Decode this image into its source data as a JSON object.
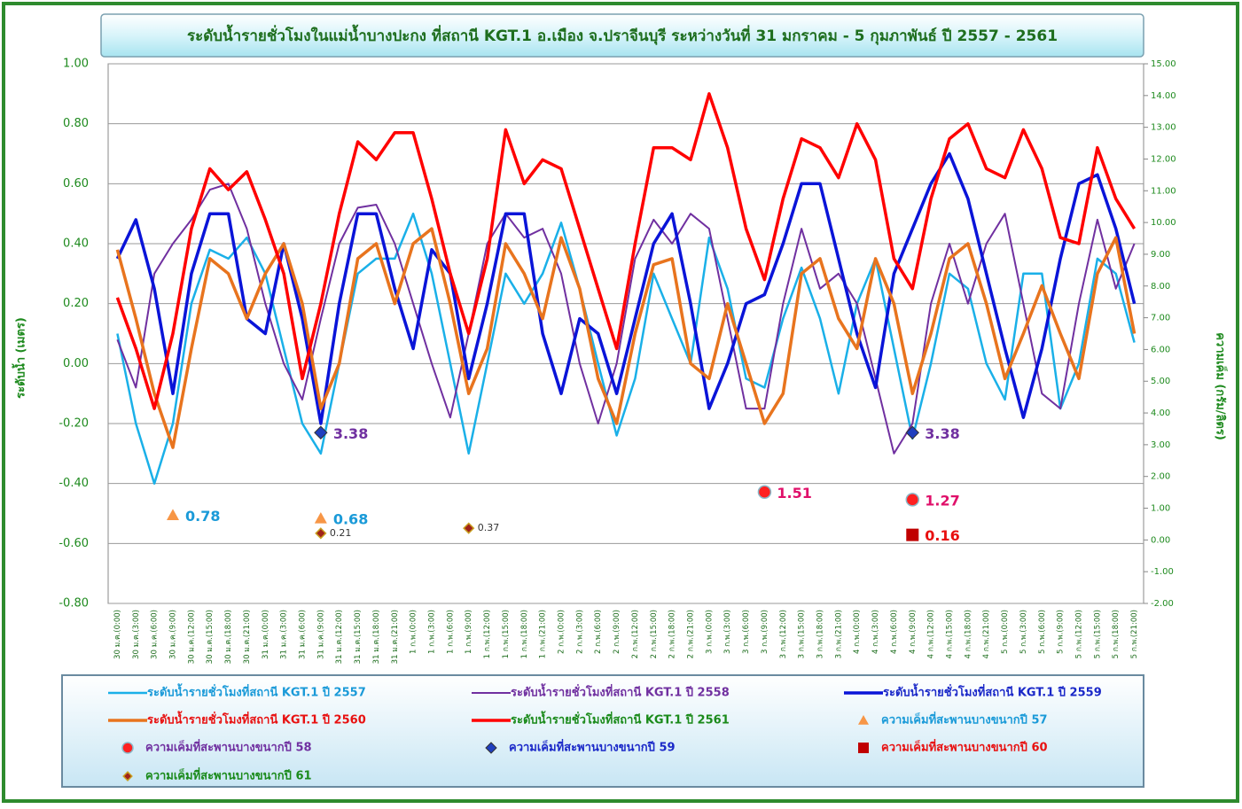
{
  "chart_data": {
    "type": "line",
    "title": "ระดับน้ำรายชั่วโมงในแม่น้ำบางปะกง ที่สถานี KGT.1 อ.เมือง จ.ปราจีนบุรี ระหว่างวันที่ 31 มกราคม - 5 กุมภาพันธ์ ปี 2557 - 2561",
    "y_label": "ระดับน้ำ (เมตร)",
    "y2_label": "ความเค็ม (กรัม/ลิตร)",
    "grid": true,
    "categories": [
      "30 ม.ค.(0:00)",
      "30 ม.ค.(3:00)",
      "30 ม.ค.(6:00)",
      "30 ม.ค.(9:00)",
      "30 ม.ค.(12:00)",
      "30 ม.ค.(15:00)",
      "30 ม.ค.(18:00)",
      "30 ม.ค.(21:00)",
      "31 ม.ค.(0:00)",
      "31 ม.ค.(3:00)",
      "31 ม.ค.(6:00)",
      "31 ม.ค.(9:00)",
      "31 ม.ค.(12:00)",
      "31 ม.ค.(15:00)",
      "31 ม.ค.(18:00)",
      "31 ม.ค.(21:00)",
      "1 ก.พ.(0:00)",
      "1 ก.พ.(3:00)",
      "1 ก.พ.(6:00)",
      "1 ก.พ.(9:00)",
      "1 ก.พ.(12:00)",
      "1 ก.พ.(15:00)",
      "1 ก.พ.(18:00)",
      "1 ก.พ.(21:00)",
      "2 ก.พ.(0:00)",
      "2 ก.พ.(3:00)",
      "2 ก.พ.(6:00)",
      "2 ก.พ.(9:00)",
      "2 ก.พ.(12:00)",
      "2 ก.พ.(15:00)",
      "2 ก.พ.(18:00)",
      "2 ก.พ.(21:00)",
      "3 ก.พ.(0:00)",
      "3 ก.พ.(3:00)",
      "3 ก.พ.(6:00)",
      "3 ก.พ.(9:00)",
      "3 ก.พ.(12:00)",
      "3 ก.พ.(15:00)",
      "3 ก.พ.(18:00)",
      "3 ก.พ.(21:00)",
      "4 ก.พ.(0:00)",
      "4 ก.พ.(3:00)",
      "4 ก.พ.(6:00)",
      "4 ก.พ.(9:00)",
      "4 ก.พ.(12:00)",
      "4 ก.พ.(15:00)",
      "4 ก.พ.(18:00)",
      "4 ก.พ.(21:00)",
      "5 ก.พ.(0:00)",
      "5 ก.พ.(3:00)",
      "5 ก.พ.(6:00)",
      "5 ก.พ.(9:00)",
      "5 ก.พ.(12:00)",
      "5 ก.พ.(15:00)",
      "5 ก.พ.(18:00)",
      "5 ก.พ.(21:00)"
    ],
    "ylim": [
      -0.8,
      1.0
    ],
    "yticks": [
      {
        "value": 1.0,
        "label": "1.00"
      },
      {
        "value": 0.8,
        "label": "0.80"
      },
      {
        "value": 0.6,
        "label": "0.60"
      },
      {
        "value": 0.4,
        "label": "0.40"
      },
      {
        "value": 0.2,
        "label": "0.20"
      },
      {
        "value": 0,
        "label": "0.00"
      },
      {
        "value": -0.2,
        "label": "-0.20"
      },
      {
        "value": -0.4,
        "label": "-0.40"
      },
      {
        "value": -0.6,
        "label": "-0.60"
      },
      {
        "value": -0.8,
        "label": "-0.80"
      }
    ],
    "y2lim": [
      -2,
      15
    ],
    "y2ticks": [
      {
        "value": 15,
        "label": "15.00"
      },
      {
        "value": 14,
        "label": "14.00"
      },
      {
        "value": 13,
        "label": "13.00"
      },
      {
        "value": 12,
        "label": "12.00"
      },
      {
        "value": 11,
        "label": "11.00"
      },
      {
        "value": 10,
        "label": "10.00"
      },
      {
        "value": 9,
        "label": "9.00"
      },
      {
        "value": 8,
        "label": "8.00"
      },
      {
        "value": 7,
        "label": "7.00"
      },
      {
        "value": 6,
        "label": "6.00"
      },
      {
        "value": 5,
        "label": "5.00"
      },
      {
        "value": 4,
        "label": "4.00"
      },
      {
        "value": 3,
        "label": "3.00"
      },
      {
        "value": 2,
        "label": "2.00"
      },
      {
        "value": 1,
        "label": "1.00"
      },
      {
        "value": 0,
        "label": "0.00"
      },
      {
        "value": -1,
        "label": "-1.00"
      },
      {
        "value": -2,
        "label": "-2.00"
      }
    ],
    "series": [
      {
        "name": "ระดับน้ำรายชั่วโมงที่สถานี KGT.1  ปี 2557",
        "color": "#1ab0e8",
        "text_color": "#1a9ad8",
        "width": 2.5,
        "values": [
          0.1,
          -0.2,
          -0.4,
          -0.2,
          0.2,
          0.38,
          0.35,
          0.42,
          0.3,
          0.05,
          -0.2,
          -0.3,
          0.0,
          0.3,
          0.35,
          0.35,
          0.5,
          0.3,
          0.0,
          -0.3,
          0.0,
          0.3,
          0.2,
          0.3,
          0.47,
          0.25,
          0.0,
          -0.24,
          -0.05,
          0.3,
          0.15,
          0.0,
          0.42,
          0.25,
          -0.05,
          -0.08,
          0.15,
          0.32,
          0.15,
          -0.1,
          0.2,
          0.35,
          0.05,
          -0.25,
          0.0,
          0.3,
          0.25,
          0.0,
          -0.12,
          0.3,
          0.3,
          -0.15,
          0.0,
          0.35,
          0.3,
          0.07
        ]
      },
      {
        "name": "ระดับน้ำรายชั่วโมงที่สถานี KGT.1  ปี 2558",
        "color": "#7030a0",
        "text_color": "#7030a0",
        "width": 2,
        "values": [
          0.08,
          -0.08,
          0.3,
          0.4,
          0.48,
          0.58,
          0.6,
          0.45,
          0.2,
          0.0,
          -0.12,
          0.15,
          0.4,
          0.52,
          0.53,
          0.4,
          0.2,
          0.0,
          -0.18,
          0.1,
          0.4,
          0.5,
          0.42,
          0.45,
          0.3,
          0.0,
          -0.2,
          0.0,
          0.35,
          0.48,
          0.4,
          0.5,
          0.45,
          0.15,
          -0.15,
          -0.15,
          0.2,
          0.45,
          0.25,
          0.3,
          0.2,
          -0.05,
          -0.3,
          -0.2,
          0.2,
          0.4,
          0.2,
          0.4,
          0.5,
          0.2,
          -0.1,
          -0.15,
          0.2,
          0.48,
          0.25,
          0.4
        ]
      },
      {
        "name": "ระดับน้ำรายชั่วโมงที่สถานี KGT.1 ปี 2559",
        "color": "#0a14d8",
        "text_color": "#1a28c8",
        "width": 3.5,
        "values": [
          0.35,
          0.48,
          0.25,
          -0.1,
          0.3,
          0.5,
          0.5,
          0.15,
          0.1,
          0.4,
          0.15,
          -0.2,
          0.2,
          0.5,
          0.5,
          0.25,
          0.05,
          0.38,
          0.3,
          -0.05,
          0.2,
          0.5,
          0.5,
          0.1,
          -0.1,
          0.15,
          0.1,
          -0.1,
          0.15,
          0.4,
          0.5,
          0.2,
          -0.15,
          0.0,
          0.2,
          0.23,
          0.4,
          0.6,
          0.6,
          0.35,
          0.1,
          -0.08,
          0.3,
          0.45,
          0.6,
          0.7,
          0.55,
          0.3,
          0.05,
          -0.18,
          0.05,
          0.35,
          0.6,
          0.63,
          0.45,
          0.2
        ]
      },
      {
        "name": "ระดับน้ำรายชั่วโมงที่สถานี KGT.1 ปี 2560",
        "color": "#e8741e",
        "text_color": "#e81010",
        "width": 3.5,
        "values": [
          0.38,
          0.15,
          -0.1,
          -0.28,
          0.05,
          0.35,
          0.3,
          0.15,
          0.3,
          0.4,
          0.2,
          -0.15,
          0.0,
          0.35,
          0.4,
          0.2,
          0.4,
          0.45,
          0.2,
          -0.1,
          0.05,
          0.4,
          0.3,
          0.15,
          0.42,
          0.25,
          -0.05,
          -0.2,
          0.1,
          0.33,
          0.35,
          0.0,
          -0.05,
          0.2,
          0.0,
          -0.2,
          -0.1,
          0.3,
          0.35,
          0.15,
          0.05,
          0.35,
          0.2,
          -0.1,
          0.1,
          0.35,
          0.4,
          0.2,
          -0.05,
          0.1,
          0.26,
          0.1,
          -0.05,
          0.3,
          0.42,
          0.1
        ]
      },
      {
        "name": "ระดับน้ำรายชั่วโมงที่สถานี KGT.1 ปี 2561",
        "color": "#ff0000",
        "text_color": "#1a8a1a",
        "width": 3.5,
        "values": [
          0.22,
          0.05,
          -0.15,
          0.1,
          0.45,
          0.65,
          0.58,
          0.64,
          0.48,
          0.3,
          -0.05,
          0.2,
          0.5,
          0.74,
          0.68,
          0.77,
          0.77,
          0.55,
          0.3,
          0.1,
          0.35,
          0.78,
          0.6,
          0.68,
          0.65,
          0.45,
          0.25,
          0.05,
          0.4,
          0.72,
          0.72,
          0.68,
          0.9,
          0.72,
          0.45,
          0.28,
          0.55,
          0.75,
          0.72,
          0.62,
          0.8,
          0.68,
          0.35,
          0.25,
          0.55,
          0.75,
          0.8,
          0.65,
          0.62,
          0.78,
          0.65,
          0.42,
          0.4,
          0.72,
          0.55,
          0.45
        ]
      },
      {
        "name": "ความเค็มที่สะพานบางขนากปี 57",
        "type": "scatter",
        "marker": "triangle",
        "axis": "y2",
        "color": "#f79646",
        "text_color": "#1a9ad8",
        "label_color": "#1a9ad8",
        "values": [
          null,
          null,
          null,
          0.78,
          null,
          null,
          null,
          null,
          null,
          null,
          null,
          0.68,
          null,
          null,
          null,
          null,
          null,
          null,
          null,
          null,
          null,
          null,
          null,
          null,
          null,
          null,
          null,
          null,
          null,
          null,
          null,
          null,
          null,
          null,
          null,
          null,
          null,
          null,
          null,
          null,
          null,
          null,
          null,
          null,
          null,
          null,
          null,
          null,
          null,
          null,
          null,
          null,
          null,
          null,
          null,
          null
        ]
      },
      {
        "name": "ความเค็มที่สะพานบางขนากปี 58",
        "type": "scatter",
        "marker": "circle",
        "axis": "y2",
        "color": "#ff2020",
        "text_color": "#7030a0",
        "label_color": "#e0106a",
        "values": [
          null,
          null,
          null,
          null,
          null,
          null,
          null,
          null,
          null,
          null,
          null,
          null,
          null,
          null,
          null,
          null,
          null,
          null,
          null,
          null,
          null,
          null,
          null,
          null,
          null,
          null,
          null,
          null,
          null,
          null,
          null,
          null,
          null,
          null,
          null,
          1.51,
          null,
          null,
          null,
          null,
          null,
          null,
          null,
          1.27,
          null,
          null,
          null,
          null,
          null,
          null,
          null,
          null,
          null,
          null,
          null,
          null
        ]
      },
      {
        "name": "ความเค็มที่สะพานบางขนากปี 59",
        "type": "scatter",
        "marker": "diamond",
        "axis": "y2",
        "color": "#1f3fbf",
        "text_color": "#1a28c8",
        "label_color": "#7030a0",
        "values": [
          null,
          null,
          null,
          null,
          null,
          null,
          null,
          null,
          null,
          null,
          null,
          3.38,
          null,
          null,
          null,
          null,
          null,
          null,
          null,
          null,
          null,
          null,
          null,
          null,
          null,
          null,
          null,
          null,
          null,
          null,
          null,
          null,
          null,
          null,
          null,
          null,
          null,
          null,
          null,
          null,
          null,
          null,
          null,
          3.38,
          null,
          null,
          null,
          null,
          null,
          null,
          null,
          null,
          null,
          null,
          null,
          null
        ]
      },
      {
        "name": "ความเค็มที่สะพานบางขนากปี 60",
        "type": "scatter",
        "marker": "square",
        "axis": "y2",
        "color": "#c00000",
        "text_color": "#e81010",
        "label_color": "#e81010",
        "values": [
          null,
          null,
          null,
          null,
          null,
          null,
          null,
          null,
          null,
          null,
          null,
          null,
          null,
          null,
          null,
          null,
          null,
          null,
          null,
          null,
          null,
          null,
          null,
          null,
          null,
          null,
          null,
          null,
          null,
          null,
          null,
          null,
          null,
          null,
          null,
          null,
          null,
          null,
          null,
          null,
          null,
          null,
          null,
          0.16,
          null,
          null,
          null,
          null,
          null,
          null,
          null,
          null,
          null,
          null,
          null,
          null
        ]
      },
      {
        "name": "ความเค็มที่สะพานบางขนากปี 61",
        "type": "scatter",
        "marker": "small-diamond",
        "axis": "y2",
        "color": "#a0221a",
        "text_color": "#1a8a1a",
        "label_color": "#333333",
        "values": [
          null,
          null,
          null,
          null,
          null,
          null,
          null,
          null,
          null,
          null,
          null,
          0.21,
          null,
          null,
          null,
          null,
          null,
          null,
          null,
          0.37,
          null,
          null,
          null,
          null,
          null,
          null,
          null,
          null,
          null,
          null,
          null,
          null,
          null,
          null,
          null,
          null,
          null,
          null,
          null,
          null,
          null,
          null,
          null,
          null,
          null,
          null,
          null,
          null,
          null,
          null,
          null,
          null,
          null,
          null,
          null,
          null
        ]
      }
    ]
  }
}
